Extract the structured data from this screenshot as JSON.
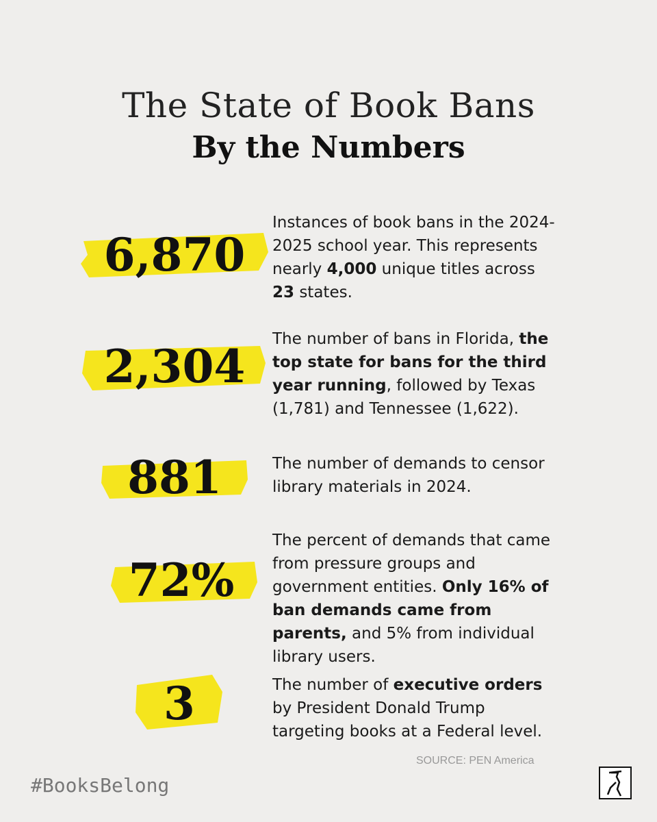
{
  "header": {
    "title": "The State of Book Bans",
    "subtitle": "By the Numbers"
  },
  "stats": [
    {
      "number": "6,870",
      "description": [
        {
          "text": "Instances of book bans in the 2024-2025 school year. This represents nearly ",
          "bold": false
        },
        {
          "text": "4,000",
          "bold": true
        },
        {
          "text": " unique titles across ",
          "bold": false
        },
        {
          "text": "23",
          "bold": true
        },
        {
          "text": " states.",
          "bold": false
        }
      ]
    },
    {
      "number": "2,304",
      "description": [
        {
          "text": "The number of bans in Florida, ",
          "bold": false
        },
        {
          "text": "the top state for bans for the third year running",
          "bold": true
        },
        {
          "text": ", followed by Texas (1,781) and Tennessee (1,622).",
          "bold": false
        }
      ]
    },
    {
      "number": "881",
      "description": [
        {
          "text": "The number of demands to censor library materials in 2024.",
          "bold": false
        }
      ]
    },
    {
      "number": "72%",
      "description": [
        {
          "text": "The percent of demands that came from pressure groups and government entities. ",
          "bold": false
        },
        {
          "text": "Only 16% of ban demands came from parents,",
          "bold": true
        },
        {
          "text": " and 5% from individual library users.",
          "bold": false
        }
      ]
    },
    {
      "number": "3",
      "description": [
        {
          "text": "The number of ",
          "bold": false
        },
        {
          "text": "executive orders",
          "bold": true
        },
        {
          "text": " by President Donald Trump targeting books at a Federal level.",
          "bold": false
        }
      ]
    }
  ],
  "footer": {
    "source": "SOURCE: PEN America",
    "hashtag": "#BooksBelong"
  }
}
